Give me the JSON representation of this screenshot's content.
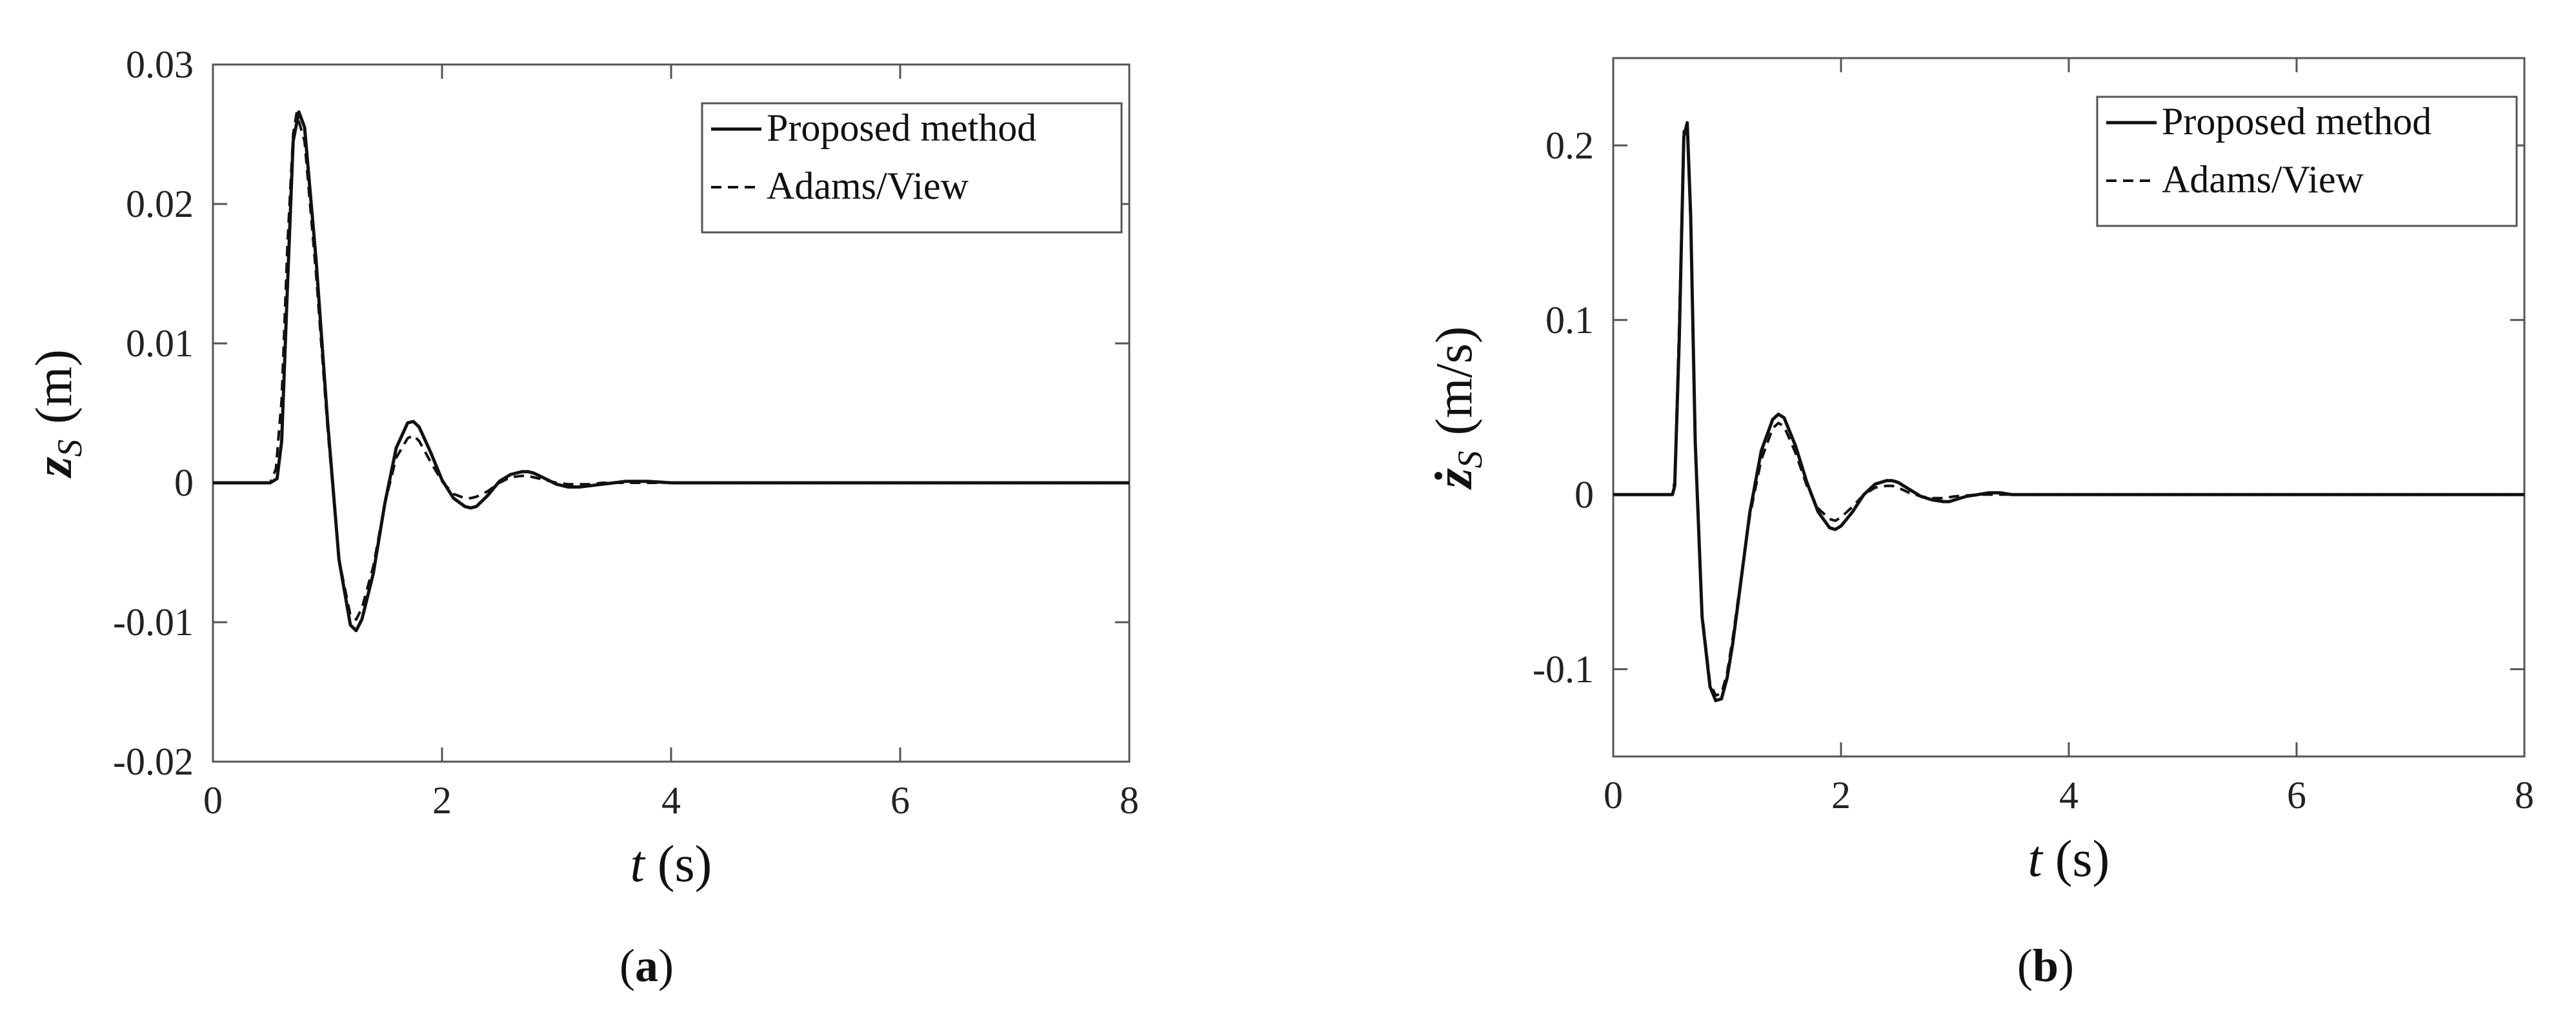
{
  "chart_data": [
    {
      "type": "line",
      "panel": "a",
      "caption": "(a)",
      "caption_letter": "a",
      "xlabel": "t (s)",
      "xlabel_symbol": "t",
      "xlabel_unit": "(s)",
      "ylabel": "z_S (m)",
      "ylabel_symbol": "z",
      "ylabel_subscript": "S",
      "ylabel_unit": "(m)",
      "xlim": [
        0,
        8
      ],
      "ylim": [
        -0.02,
        0.03
      ],
      "xticks": [
        0,
        2,
        4,
        6,
        8
      ],
      "xtick_labels": [
        "0",
        "2",
        "4",
        "6",
        "8"
      ],
      "yticks": [
        -0.02,
        -0.01,
        0,
        0.01,
        0.02,
        0.03
      ],
      "ytick_labels": [
        "-0.02",
        "-0.01",
        "0",
        "0.01",
        "0.02",
        "0.03"
      ],
      "grid": false,
      "legend_position": "top-right",
      "series": [
        {
          "name": "Proposed method",
          "style": "solid",
          "color": "#111111",
          "x": [
            0,
            0.5,
            0.56,
            0.6,
            0.65,
            0.7,
            0.75,
            0.8,
            0.9,
            1.0,
            1.1,
            1.2,
            1.25,
            1.3,
            1.4,
            1.5,
            1.6,
            1.7,
            1.75,
            1.8,
            1.9,
            2.0,
            2.1,
            2.2,
            2.25,
            2.3,
            2.4,
            2.5,
            2.6,
            2.7,
            2.75,
            2.8,
            2.9,
            3.0,
            3.1,
            3.2,
            3.3,
            3.4,
            3.5,
            3.6,
            3.7,
            3.8,
            3.9,
            4.0,
            4.2,
            4.5,
            5,
            8
          ],
          "y": [
            0,
            0,
            0.0003,
            0.003,
            0.014,
            0.0245,
            0.0266,
            0.0255,
            0.016,
            0.0045,
            -0.0055,
            -0.0102,
            -0.0106,
            -0.0098,
            -0.0065,
            -0.0015,
            0.0025,
            0.0043,
            0.0044,
            0.004,
            0.0022,
            0.0002,
            -0.0011,
            -0.0017,
            -0.0018,
            -0.0017,
            -0.0009,
            0.0001,
            0.0006,
            0.0008,
            0.0008,
            0.0007,
            0.0003,
            -0.0001,
            -0.0003,
            -0.0003,
            -0.0002,
            -0.0001,
            0,
            0.0001,
            0.0001,
            0.0001,
            5e-05,
            0,
            0,
            0,
            0,
            0
          ]
        },
        {
          "name": "Adams/View",
          "style": "dashed",
          "color": "#111111",
          "x": [
            0,
            0.5,
            0.55,
            0.6,
            0.65,
            0.7,
            0.73,
            0.8,
            0.9,
            1.0,
            1.1,
            1.2,
            1.25,
            1.3,
            1.4,
            1.5,
            1.6,
            1.7,
            1.75,
            1.8,
            1.9,
            2.0,
            2.1,
            2.2,
            2.25,
            2.3,
            2.4,
            2.5,
            2.6,
            2.7,
            2.75,
            2.8,
            2.9,
            3.0,
            3.1,
            3.2,
            3.3,
            3.4,
            3.5,
            3.6,
            3.7,
            3.8,
            4.0,
            4.5,
            5,
            8
          ],
          "y": [
            0,
            0,
            0.001,
            0.006,
            0.017,
            0.025,
            0.0265,
            0.0245,
            0.015,
            0.004,
            -0.0055,
            -0.0095,
            -0.0098,
            -0.009,
            -0.006,
            -0.0015,
            0.0018,
            0.0032,
            0.0034,
            0.003,
            0.0015,
            0.0001,
            -0.0008,
            -0.0011,
            -0.0011,
            -0.001,
            -0.0006,
            0,
            0.0004,
            0.0005,
            0.0005,
            0.0004,
            0.0002,
            0,
            -0.0001,
            -0.0001,
            -0.0001,
            0,
            0,
            0,
            0,
            0,
            0,
            0,
            0,
            0
          ]
        }
      ]
    },
    {
      "type": "line",
      "panel": "b",
      "caption": "(b)",
      "caption_letter": "b",
      "xlabel": "t (s)",
      "xlabel_symbol": "t",
      "xlabel_unit": "(s)",
      "ylabel": "ż_S (m/s)",
      "ylabel_symbol": "ż",
      "ylabel_subscript": "S",
      "ylabel_unit": "(m/s)",
      "xlim": [
        0,
        8
      ],
      "ylim": [
        -0.15,
        0.25
      ],
      "xticks": [
        0,
        2,
        4,
        6,
        8
      ],
      "xtick_labels": [
        "0",
        "2",
        "4",
        "6",
        "8"
      ],
      "yticks": [
        -0.1,
        0,
        0.1,
        0.2
      ],
      "ytick_labels": [
        "-0.1",
        "0",
        "0.1",
        "0.2"
      ],
      "grid": false,
      "legend_position": "top-right",
      "series": [
        {
          "name": "Proposed method",
          "style": "solid",
          "color": "#111111",
          "x": [
            0,
            0.52,
            0.54,
            0.58,
            0.62,
            0.65,
            0.68,
            0.72,
            0.78,
            0.85,
            0.9,
            0.95,
            1.0,
            1.05,
            1.1,
            1.2,
            1.3,
            1.4,
            1.45,
            1.5,
            1.6,
            1.7,
            1.8,
            1.9,
            1.95,
            2.0,
            2.1,
            2.2,
            2.3,
            2.4,
            2.45,
            2.5,
            2.6,
            2.7,
            2.8,
            2.9,
            2.95,
            3.0,
            3.1,
            3.2,
            3.3,
            3.4,
            3.5,
            3.7,
            4.0,
            4.5,
            5,
            8
          ],
          "y": [
            0,
            0,
            0.005,
            0.09,
            0.205,
            0.213,
            0.16,
            0.03,
            -0.07,
            -0.11,
            -0.118,
            -0.117,
            -0.105,
            -0.085,
            -0.06,
            -0.01,
            0.025,
            0.043,
            0.046,
            0.044,
            0.028,
            0.007,
            -0.01,
            -0.019,
            -0.02,
            -0.018,
            -0.01,
            0,
            0.006,
            0.008,
            0.008,
            0.007,
            0.003,
            -0.001,
            -0.003,
            -0.004,
            -0.004,
            -0.003,
            -0.001,
            0,
            0.001,
            0.001,
            0,
            0,
            0,
            0,
            0,
            0
          ]
        },
        {
          "name": "Adams/View",
          "style": "dashed",
          "color": "#111111",
          "x": [
            0,
            0.52,
            0.54,
            0.58,
            0.62,
            0.65,
            0.68,
            0.72,
            0.78,
            0.85,
            0.9,
            0.95,
            1.0,
            1.05,
            1.1,
            1.2,
            1.3,
            1.4,
            1.45,
            1.5,
            1.6,
            1.7,
            1.8,
            1.9,
            1.95,
            2.0,
            2.1,
            2.2,
            2.3,
            2.4,
            2.45,
            2.5,
            2.6,
            2.7,
            2.8,
            2.9,
            3.0,
            3.2,
            3.4,
            3.7,
            4.0,
            4.5,
            5,
            8
          ],
          "y": [
            0,
            0,
            0.008,
            0.1,
            0.208,
            0.21,
            0.155,
            0.025,
            -0.068,
            -0.108,
            -0.115,
            -0.114,
            -0.102,
            -0.082,
            -0.058,
            -0.012,
            0.02,
            0.038,
            0.041,
            0.039,
            0.024,
            0.005,
            -0.008,
            -0.014,
            -0.015,
            -0.013,
            -0.007,
            0,
            0.004,
            0.005,
            0.005,
            0.004,
            0.001,
            -0.001,
            -0.002,
            -0.002,
            -0.001,
            0,
            0,
            0,
            0,
            0,
            0,
            0
          ]
        }
      ]
    }
  ]
}
